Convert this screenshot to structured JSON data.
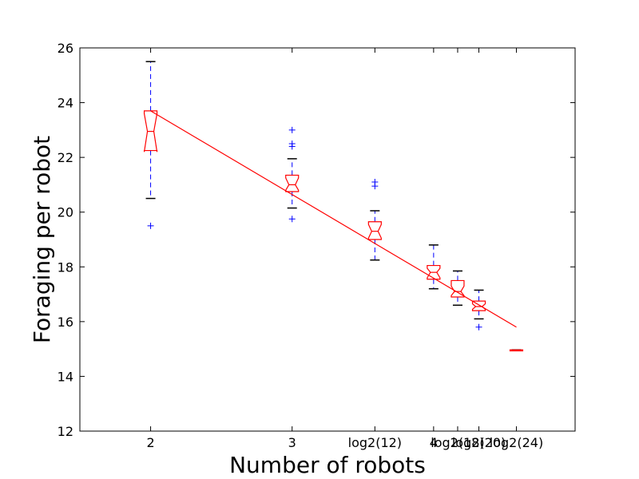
{
  "chart_data": {
    "type": "box",
    "title": "",
    "xlabel": "Number of robots",
    "ylabel": "Foraging per robot",
    "ylim": [
      12,
      26
    ],
    "yticks": [
      12,
      14,
      16,
      18,
      20,
      22,
      24,
      26
    ],
    "xticks": [
      {
        "pos": 2,
        "label": "2"
      },
      {
        "pos": 3,
        "label": "3"
      },
      {
        "pos": 3.585,
        "label": "log2(12)"
      },
      {
        "pos": 4,
        "label": "4"
      },
      {
        "pos": 4.17,
        "label": "log2(18)"
      },
      {
        "pos": 4.32,
        "label": "log2(20)"
      },
      {
        "pos": 4.585,
        "label": "log2(24)"
      }
    ],
    "boxes": [
      {
        "x": 2,
        "wlo": 20.5,
        "q1": 22.25,
        "med": 22.95,
        "q3": 23.7,
        "whi": 25.5,
        "nlo": 22.2,
        "nhi": 23.6,
        "fliers": [
          19.5
        ]
      },
      {
        "x": 3,
        "wlo": 20.15,
        "q1": 20.75,
        "med": 21.0,
        "q3": 21.35,
        "whi": 21.95,
        "nlo": 20.8,
        "nhi": 21.25,
        "fliers": [
          23.0,
          22.5,
          22.4,
          19.75
        ]
      },
      {
        "x": 3.585,
        "wlo": 18.25,
        "q1": 19.0,
        "med": 19.3,
        "q3": 19.65,
        "whi": 20.05,
        "nlo": 19.05,
        "nhi": 19.55,
        "fliers": [
          21.1,
          20.95
        ]
      },
      {
        "x": 4,
        "wlo": 17.2,
        "q1": 17.55,
        "med": 17.8,
        "q3": 18.05,
        "whi": 18.8,
        "nlo": 17.6,
        "nhi": 17.95,
        "fliers": []
      },
      {
        "x": 4.17,
        "wlo": 16.6,
        "q1": 16.9,
        "med": 17.1,
        "q3": 17.5,
        "whi": 17.85,
        "nlo": 16.95,
        "nhi": 17.3,
        "fliers": []
      },
      {
        "x": 4.32,
        "wlo": 16.1,
        "q1": 16.4,
        "med": 16.55,
        "q3": 16.75,
        "whi": 17.15,
        "nlo": 16.45,
        "nhi": 16.65,
        "fliers": [
          15.8
        ]
      },
      {
        "x": 4.585,
        "wlo": 14.95,
        "q1": 14.93,
        "med": 14.95,
        "q3": 14.97,
        "whi": 14.97,
        "nlo": 14.94,
        "nhi": 14.96,
        "fliers": []
      }
    ],
    "fit_line": {
      "x": [
        2,
        4.585
      ],
      "y": [
        23.7,
        15.8
      ]
    },
    "colors": {
      "box": "#ff0000",
      "whisker": "#0000ff",
      "cap": "#000000",
      "flier": "#0000ff",
      "fit": "#ff0000"
    }
  }
}
